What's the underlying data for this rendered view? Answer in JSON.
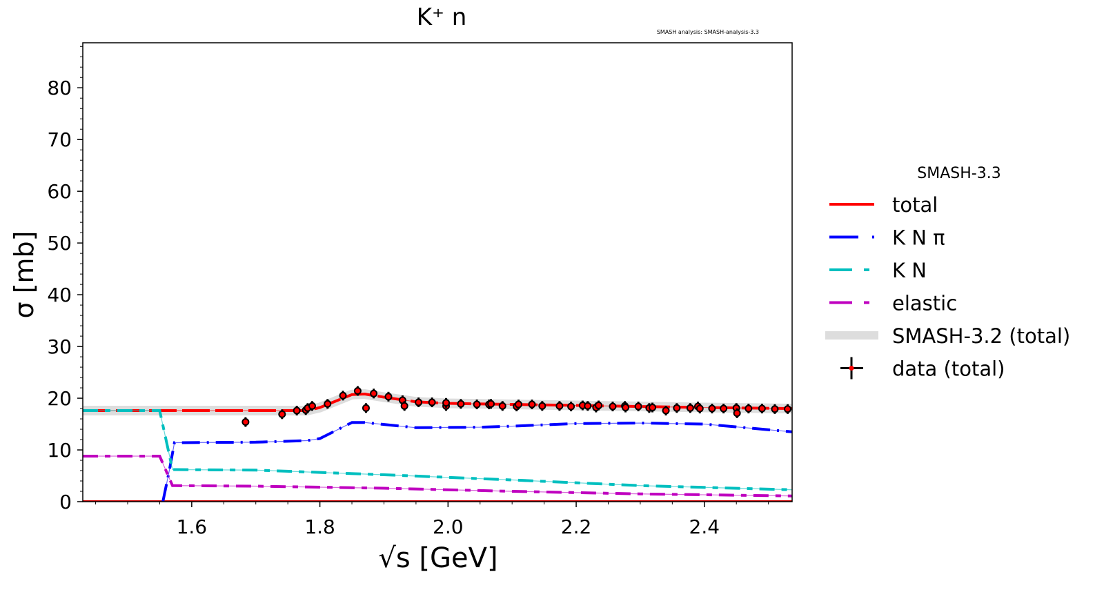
{
  "chart_data": {
    "type": "line",
    "title": "K⁺ n",
    "annotation": "SMASH analysis: SMASH-analysis-3.3",
    "xlabel": "√s [GeV]",
    "ylabel": "σ [mb]",
    "xlim": [
      1.43,
      2.537
    ],
    "ylim": [
      0,
      88.7
    ],
    "xticks": [
      1.6,
      1.8,
      2.0,
      2.2,
      2.4
    ],
    "xtick_labels": [
      "1.6",
      "1.8",
      "2.0",
      "2.2",
      "2.4"
    ],
    "yticks": [
      0,
      10,
      20,
      30,
      40,
      50,
      60,
      70,
      80
    ],
    "ytick_labels": [
      "0",
      "10",
      "20",
      "30",
      "40",
      "50",
      "60",
      "70",
      "80"
    ],
    "grid": false,
    "legend": {
      "title": "SMASH-3.3",
      "placement": "outside-right"
    },
    "series": [
      {
        "name": "total",
        "color": "#ff0000",
        "style": "solid",
        "x": [
          1.43,
          1.78,
          1.8,
          1.85,
          1.87,
          1.9,
          1.95,
          2.0,
          2.1,
          2.2,
          2.3,
          2.4,
          2.537
        ],
        "y": [
          17.6,
          17.6,
          18.2,
          20.7,
          20.8,
          20.2,
          19.3,
          19.0,
          18.8,
          18.6,
          18.4,
          18.2,
          18.0
        ]
      },
      {
        "name": "K N π",
        "color": "#0000ff",
        "style": "dash-dot",
        "x": [
          1.555,
          1.565,
          1.573,
          1.7,
          1.78,
          1.8,
          1.85,
          1.87,
          1.95,
          2.05,
          2.1,
          2.2,
          2.3,
          2.4,
          2.537
        ],
        "y": [
          0,
          6,
          11.4,
          11.5,
          11.8,
          12.2,
          15.3,
          15.3,
          14.3,
          14.4,
          14.6,
          15.1,
          15.2,
          15.0,
          13.5
        ]
      },
      {
        "name": "K N",
        "color": "#00bfbf",
        "style": "dash-dot",
        "x": [
          1.43,
          1.55,
          1.57,
          1.7,
          1.9,
          2.1,
          2.3,
          2.537
        ],
        "y": [
          17.6,
          17.6,
          6.2,
          6.1,
          5.2,
          4.2,
          3.1,
          2.3
        ]
      },
      {
        "name": "elastic",
        "color": "#bf00bf",
        "style": "dash-dot",
        "x": [
          1.43,
          1.55,
          1.57,
          1.7,
          1.9,
          2.1,
          2.3,
          2.537
        ],
        "y": [
          8.8,
          8.8,
          3.1,
          3.0,
          2.6,
          2.0,
          1.5,
          1.1
        ]
      },
      {
        "name": "SMASH-3.2 (total)",
        "color": "#dddddd",
        "style": "band",
        "x": [
          1.43,
          1.78,
          1.8,
          1.85,
          1.87,
          1.9,
          1.95,
          2.0,
          2.1,
          2.2,
          2.3,
          2.4,
          2.537
        ],
        "y": [
          17.6,
          17.6,
          18.2,
          20.7,
          20.8,
          20.2,
          19.3,
          19.0,
          18.8,
          18.6,
          18.4,
          18.2,
          18.0
        ]
      },
      {
        "name": "data (total)",
        "color": "#ff0000",
        "style": "points",
        "x": [
          1.684,
          1.741,
          1.764,
          1.778,
          1.781,
          1.788,
          1.812,
          1.836,
          1.859,
          1.872,
          1.884,
          1.907,
          1.929,
          1.932,
          1.954,
          1.975,
          1.997,
          1.997,
          2.02,
          2.045,
          2.064,
          2.067,
          2.085,
          2.107,
          2.11,
          2.131,
          2.147,
          2.174,
          2.192,
          2.21,
          2.218,
          2.231,
          2.235,
          2.257,
          2.276,
          2.277,
          2.297,
          2.314,
          2.319,
          2.34,
          2.357,
          2.378,
          2.39,
          2.393,
          2.412,
          2.43,
          2.45,
          2.451,
          2.469,
          2.49,
          2.51,
          2.53
        ],
        "y": [
          15.4,
          16.9,
          17.6,
          17.7,
          18.1,
          18.5,
          18.9,
          20.5,
          21.4,
          18.1,
          20.9,
          20.3,
          19.6,
          18.5,
          19.2,
          19.2,
          18.5,
          19.1,
          18.9,
          18.8,
          18.8,
          18.9,
          18.5,
          18.4,
          18.8,
          18.8,
          18.5,
          18.5,
          18.4,
          18.6,
          18.5,
          18.2,
          18.6,
          18.4,
          18.5,
          18.2,
          18.4,
          18.1,
          18.2,
          17.6,
          18.1,
          18.1,
          18.4,
          18.0,
          18.0,
          18.0,
          18.1,
          17.1,
          18.0,
          18.0,
          17.9,
          17.9
        ]
      }
    ]
  }
}
